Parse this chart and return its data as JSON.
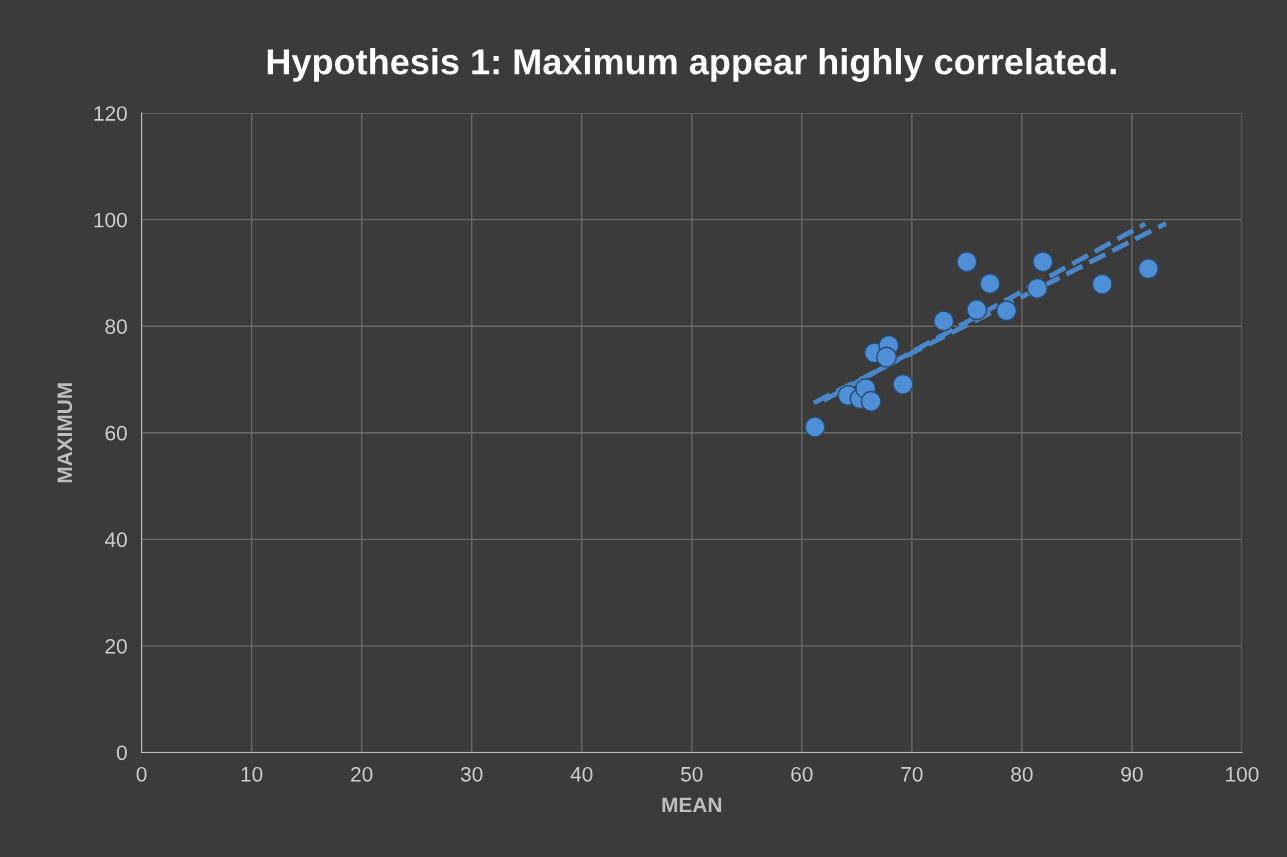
{
  "chart_data": {
    "type": "scatter",
    "title": "Hypothesis 1: Maximum appear highly correlated.",
    "xlabel": "MEAN",
    "ylabel": "MAXIMUM",
    "xlim": [
      0,
      100
    ],
    "xticks": [
      0,
      10,
      20,
      30,
      40,
      50,
      60,
      70,
      80,
      90,
      100
    ],
    "ylim": [
      0,
      120
    ],
    "yticks": [
      0,
      20,
      40,
      60,
      80,
      100,
      120
    ],
    "grid": true,
    "legend": false,
    "series": [
      {
        "color": "#4f8fd6",
        "marker": "circle",
        "x": [
          61.2,
          64.2,
          65.3,
          65.8,
          66.3,
          69.2,
          66.6,
          67.9,
          67.7,
          72.9,
          75.0,
          75.9,
          77.1,
          78.6,
          81.4,
          81.9,
          87.3,
          91.5
        ],
        "values": [
          61.1,
          67.0,
          66.4,
          68.3,
          65.9,
          69.1,
          75.0,
          76.4,
          74.2,
          81.0,
          92.1,
          83.1,
          88.0,
          82.9,
          87.1,
          92.1,
          87.9,
          90.8
        ]
      },
      {
        "type": "line",
        "color": "#4a86c8",
        "line_style": "dashed",
        "marker": "none",
        "x": [
          61.1,
          93.1
        ],
        "values": [
          65.6,
          99.3
        ]
      },
      {
        "type": "line",
        "color": "#4a86c8",
        "line_style": "dashed",
        "marker": "none",
        "x": [
          62.0,
          91.2
        ],
        "values": [
          66.1,
          99.2
        ]
      }
    ]
  }
}
